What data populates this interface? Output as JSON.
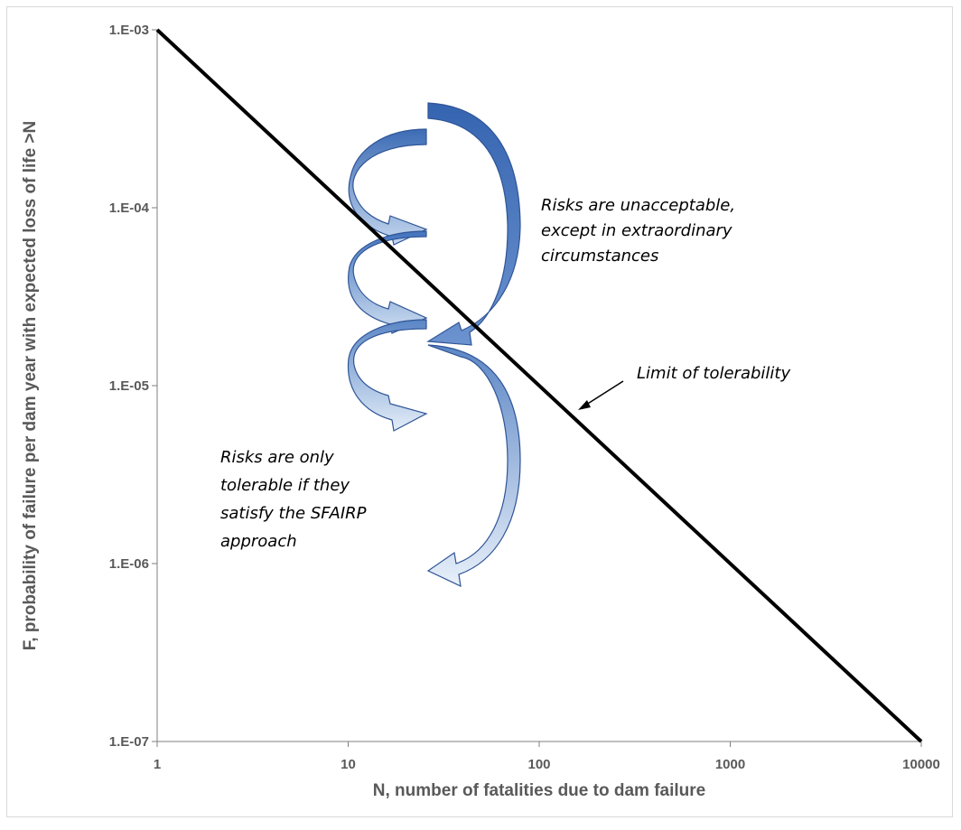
{
  "chart_data": {
    "type": "line",
    "xlabel": "N, number of fatalities due to dam failure",
    "ylabel": "F, probability of failure per dam year with expected loss of life >N",
    "x_scale": "log",
    "y_scale": "log",
    "xlim": [
      1,
      10000
    ],
    "ylim": [
      1e-07,
      0.001
    ],
    "x_ticks": [
      1,
      10,
      100,
      1000,
      10000
    ],
    "x_tick_labels": [
      "1",
      "10",
      "100",
      "1000",
      "10000"
    ],
    "y_ticks": [
      0.001,
      0.0001,
      1e-05,
      1e-06,
      1e-07
    ],
    "y_tick_labels": [
      "1.E-03",
      "1.E-04",
      "1.E-05",
      "1.E-06",
      "1.E-07"
    ],
    "grid": false,
    "series": [
      {
        "x": [
          1,
          10000
        ],
        "y": [
          0.001,
          1e-07
        ]
      }
    ],
    "annotations": [
      {
        "text": [
          "Risks are unacceptable,",
          "except in extraordinary",
          "circumstances"
        ]
      },
      {
        "text": [
          "Limit of tolerability"
        ]
      },
      {
        "text": [
          "Risks are only",
          "tolerable if they",
          "satisfy the SFAIRP",
          "approach"
        ]
      }
    ],
    "colors": {
      "line": "#000000",
      "arrow_dark": "#3d6cb5",
      "arrow_light": "#ddeaf7",
      "arrow_outline": "#2f5597",
      "axis": "#595959"
    }
  }
}
